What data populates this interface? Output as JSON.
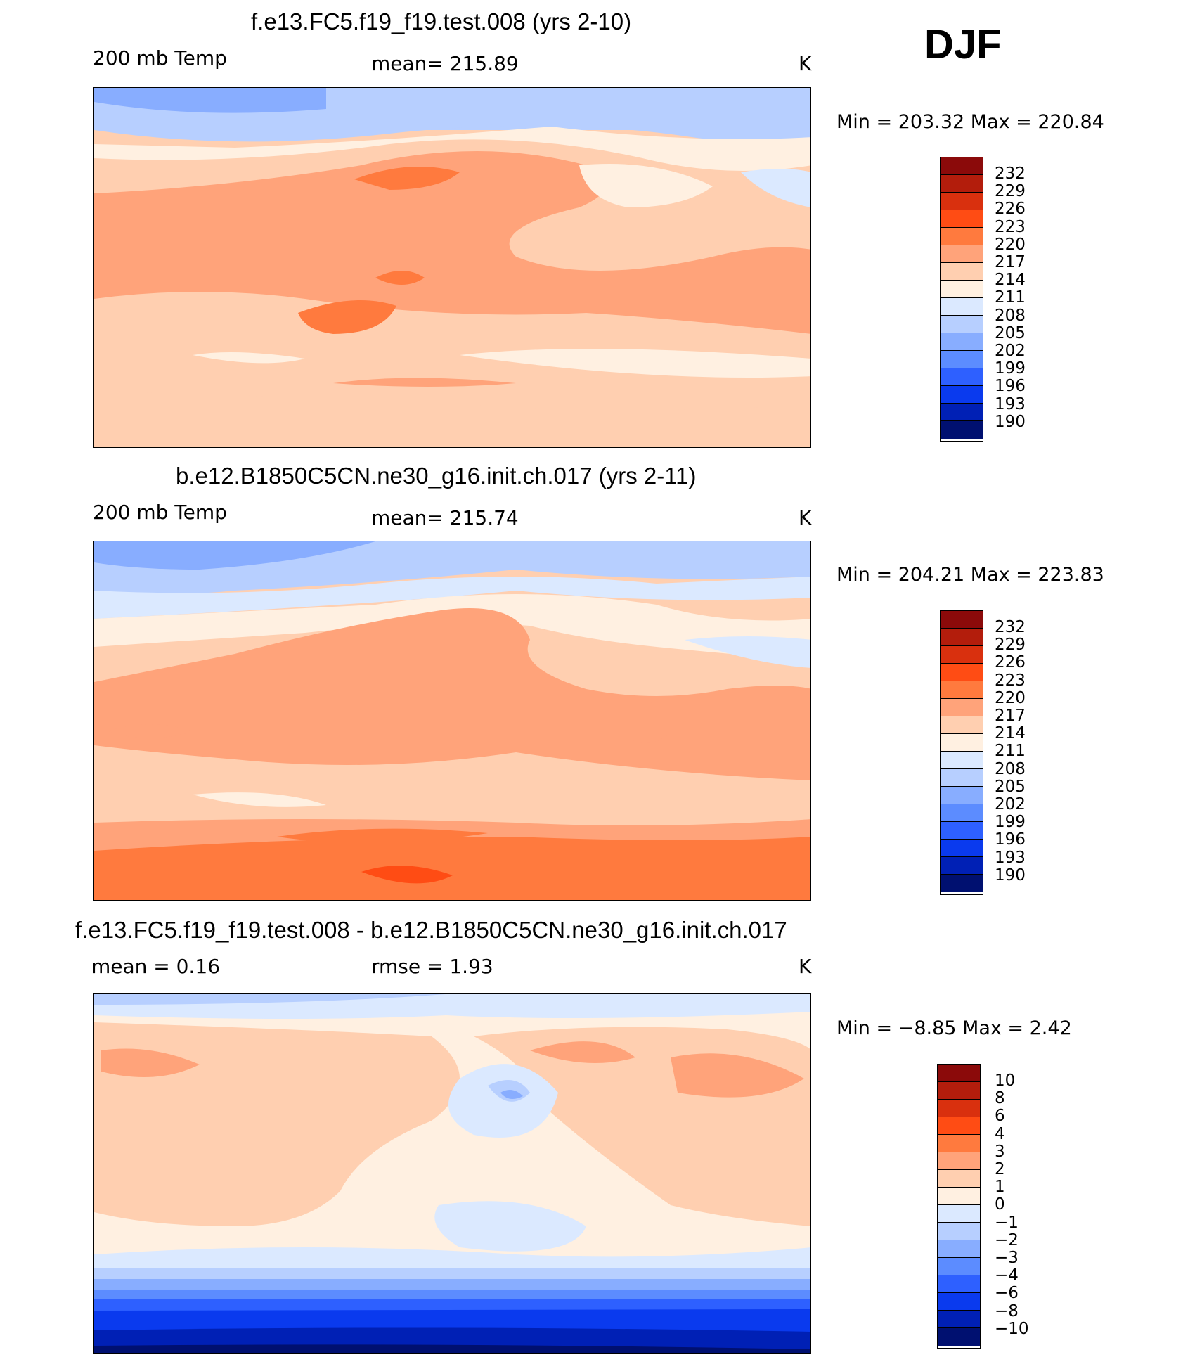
{
  "season": "DJF",
  "panels": [
    {
      "title": "f.e13.FC5.f19_f19.test.008 (yrs 2-10)",
      "left_label": "200 mb Temp",
      "center_label": "mean=  215.89",
      "units": "K",
      "min_max": "Min  =  203.32  Max  =  220.84",
      "colorbar": {
        "ticks": [
          "232",
          "229",
          "226",
          "223",
          "220",
          "217",
          "214",
          "211",
          "208",
          "205",
          "202",
          "199",
          "196",
          "193",
          "190"
        ],
        "colors": [
          "#8b0a0a",
          "#b31d0c",
          "#d9300e",
          "#ff4c14",
          "#ff7a3e",
          "#ffa37a",
          "#ffcfb0",
          "#fff0e1",
          "#dbe9ff",
          "#b7cfff",
          "#88adff",
          "#5c8cff",
          "#2e60ff",
          "#0a3aee",
          "#0020b5",
          "#001070"
        ]
      }
    },
    {
      "title": "b.e12.B1850C5CN.ne30_g16.init.ch.017 (yrs 2-11)",
      "left_label": "200 mb Temp",
      "center_label": "mean=  215.74",
      "units": "K",
      "min_max": "Min  =  204.21  Max  =  223.83",
      "colorbar": {
        "ticks": [
          "232",
          "229",
          "226",
          "223",
          "220",
          "217",
          "214",
          "211",
          "208",
          "205",
          "202",
          "199",
          "196",
          "193",
          "190"
        ],
        "colors": [
          "#8b0a0a",
          "#b31d0c",
          "#d9300e",
          "#ff4c14",
          "#ff7a3e",
          "#ffa37a",
          "#ffcfb0",
          "#fff0e1",
          "#dbe9ff",
          "#b7cfff",
          "#88adff",
          "#5c8cff",
          "#2e60ff",
          "#0a3aee",
          "#0020b5",
          "#001070"
        ]
      }
    },
    {
      "title": "f.e13.FC5.f19_f19.test.008 - b.e12.B1850C5CN.ne30_g16.init.ch.017",
      "left_label": "mean =     0.16",
      "center_label": "rmse =     1.93",
      "units": "K",
      "min_max": "Min  =    −8.85  Max  =     2.42",
      "colorbar": {
        "ticks": [
          "10",
          "8",
          "6",
          "4",
          "3",
          "2",
          "1",
          "0",
          "−1",
          "−2",
          "−3",
          "−4",
          "−6",
          "−8",
          "−10"
        ],
        "colors": [
          "#8b0a0a",
          "#b31d0c",
          "#d9300e",
          "#ff4c14",
          "#ff7a3e",
          "#ffa37a",
          "#ffcfb0",
          "#fff0e1",
          "#dbe9ff",
          "#b7cfff",
          "#88adff",
          "#5c8cff",
          "#2e60ff",
          "#0a3aee",
          "#0020b5",
          "#001070"
        ]
      }
    }
  ]
}
